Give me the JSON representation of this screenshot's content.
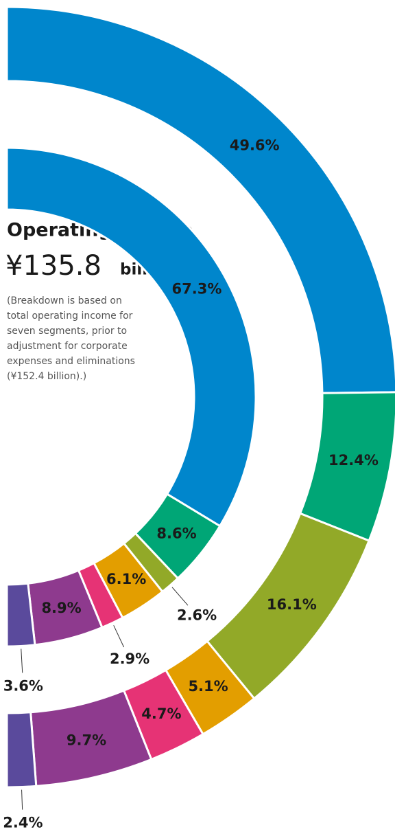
{
  "chart_data": {
    "type": "donut",
    "title": "Operating income",
    "amount": "¥135.8",
    "unit": "billion",
    "note": [
      "(Breakdown is based on",
      "total operating income for",
      "seven segments, prior to",
      "adjustment for corporate",
      "expenses and eliminations",
      "(¥152.4 billion).)"
    ],
    "colors": [
      "#0086cc",
      "#00a676",
      "#92a928",
      "#e39e00",
      "#e63375",
      "#8e3a8e",
      "#5a4a9c"
    ],
    "series": [
      {
        "values": [
          49.6,
          12.4,
          16.1,
          5.1,
          4.7,
          9.7,
          2.4
        ],
        "value_labels": [
          "49.6%",
          "12.4%",
          "16.1%",
          "5.1%",
          "4.7%",
          "9.7%",
          "2.4%"
        ]
      },
      {
        "values": [
          67.3,
          8.6,
          2.6,
          6.1,
          2.9,
          8.9,
          3.6
        ],
        "value_labels": [
          "67.3%",
          "8.6%",
          "2.6%",
          "6.1%",
          "2.9%",
          "8.9%",
          "3.6%"
        ]
      }
    ]
  }
}
